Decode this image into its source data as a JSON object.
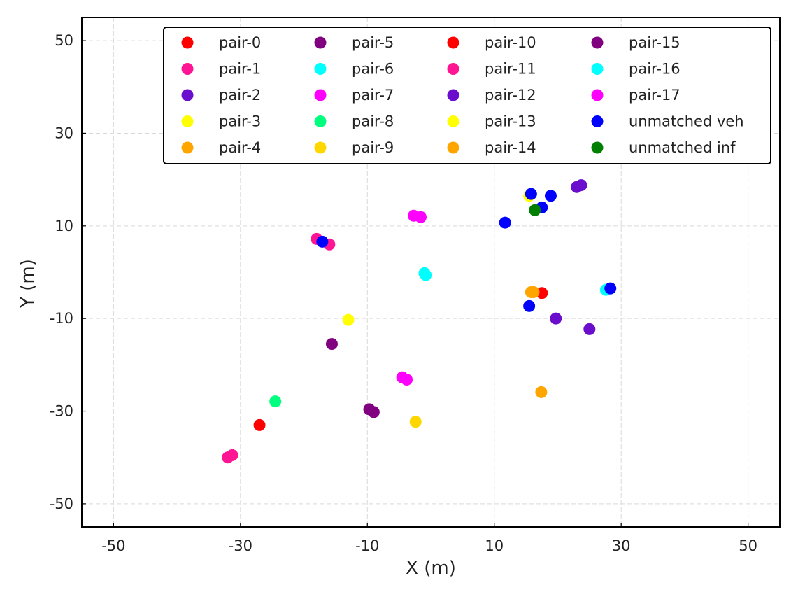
{
  "chart_data": {
    "type": "scatter",
    "title": "",
    "xlabel": "X (m)",
    "ylabel": "Y (m)",
    "xlim": [
      -55,
      55
    ],
    "ylim": [
      -55,
      55
    ],
    "xticks": [
      -50,
      -30,
      -10,
      10,
      30,
      50
    ],
    "yticks": [
      -50,
      -30,
      -10,
      10,
      30,
      50
    ],
    "grid": true,
    "legend_position": "top-right",
    "legend_columns": 4,
    "series": [
      {
        "name": "pair-0",
        "color": "#ff0000",
        "points": [
          [
            -27,
            -33
          ],
          [
            17.5,
            -4.5
          ]
        ]
      },
      {
        "name": "pair-1",
        "color": "#ff1493",
        "points": [
          [
            -18,
            7.2
          ],
          [
            -16,
            6
          ],
          [
            -32,
            -40
          ],
          [
            -31.3,
            -39.5
          ]
        ]
      },
      {
        "name": "pair-2",
        "color": "#6a0dcc",
        "points": [
          [
            19.7,
            -10
          ],
          [
            25,
            -12.3
          ],
          [
            23,
            18.4
          ],
          [
            23.7,
            18.8
          ]
        ]
      },
      {
        "name": "pair-3",
        "color": "#ffff00",
        "points": [
          [
            -13,
            -10.3
          ],
          [
            15.5,
            16.5
          ]
        ]
      },
      {
        "name": "pair-4",
        "color": "#ffa500",
        "points": [
          [
            17.4,
            -25.9
          ],
          [
            16.2,
            -4.3
          ]
        ]
      },
      {
        "name": "pair-5",
        "color": "#800080",
        "points": [
          [
            -15.6,
            -15.5
          ],
          [
            -9.7,
            -29.6
          ],
          [
            -9,
            -30.2
          ]
        ]
      },
      {
        "name": "pair-6",
        "color": "#00ffff",
        "points": [
          [
            -1,
            -0.2
          ],
          [
            -0.8,
            -0.6
          ],
          [
            27.6,
            -3.8
          ]
        ]
      },
      {
        "name": "pair-7",
        "color": "#ff00ff",
        "points": [
          [
            -2.7,
            12.2
          ],
          [
            -1.6,
            11.9
          ],
          [
            -4.5,
            -22.7
          ],
          [
            -3.8,
            -23.2
          ]
        ]
      },
      {
        "name": "pair-8",
        "color": "#00ff7f",
        "points": [
          [
            -24.5,
            -27.9
          ]
        ]
      },
      {
        "name": "pair-9",
        "color": "#ffd700",
        "points": [
          [
            -2.4,
            -32.3
          ]
        ]
      },
      {
        "name": "pair-10",
        "color": "#ff0000",
        "points": []
      },
      {
        "name": "pair-11",
        "color": "#ff1493",
        "points": []
      },
      {
        "name": "pair-12",
        "color": "#6a0dcc",
        "points": []
      },
      {
        "name": "pair-13",
        "color": "#ffff00",
        "points": []
      },
      {
        "name": "pair-14",
        "color": "#ffa500",
        "points": [
          [
            15.8,
            -4.3
          ]
        ]
      },
      {
        "name": "pair-15",
        "color": "#800080",
        "points": []
      },
      {
        "name": "pair-16",
        "color": "#00ffff",
        "points": []
      },
      {
        "name": "pair-17",
        "color": "#ff00ff",
        "points": []
      },
      {
        "name": "unmatched veh",
        "color": "#0000ff",
        "points": [
          [
            -17.1,
            6.6
          ],
          [
            11.7,
            10.7
          ],
          [
            15.8,
            16.9
          ],
          [
            18.9,
            16.5
          ],
          [
            17.5,
            14
          ],
          [
            28.3,
            -3.5
          ],
          [
            15.5,
            -7.3
          ]
        ]
      },
      {
        "name": "unmatched inf",
        "color": "#007f00",
        "points": [
          [
            16.4,
            13.4
          ]
        ]
      }
    ]
  }
}
